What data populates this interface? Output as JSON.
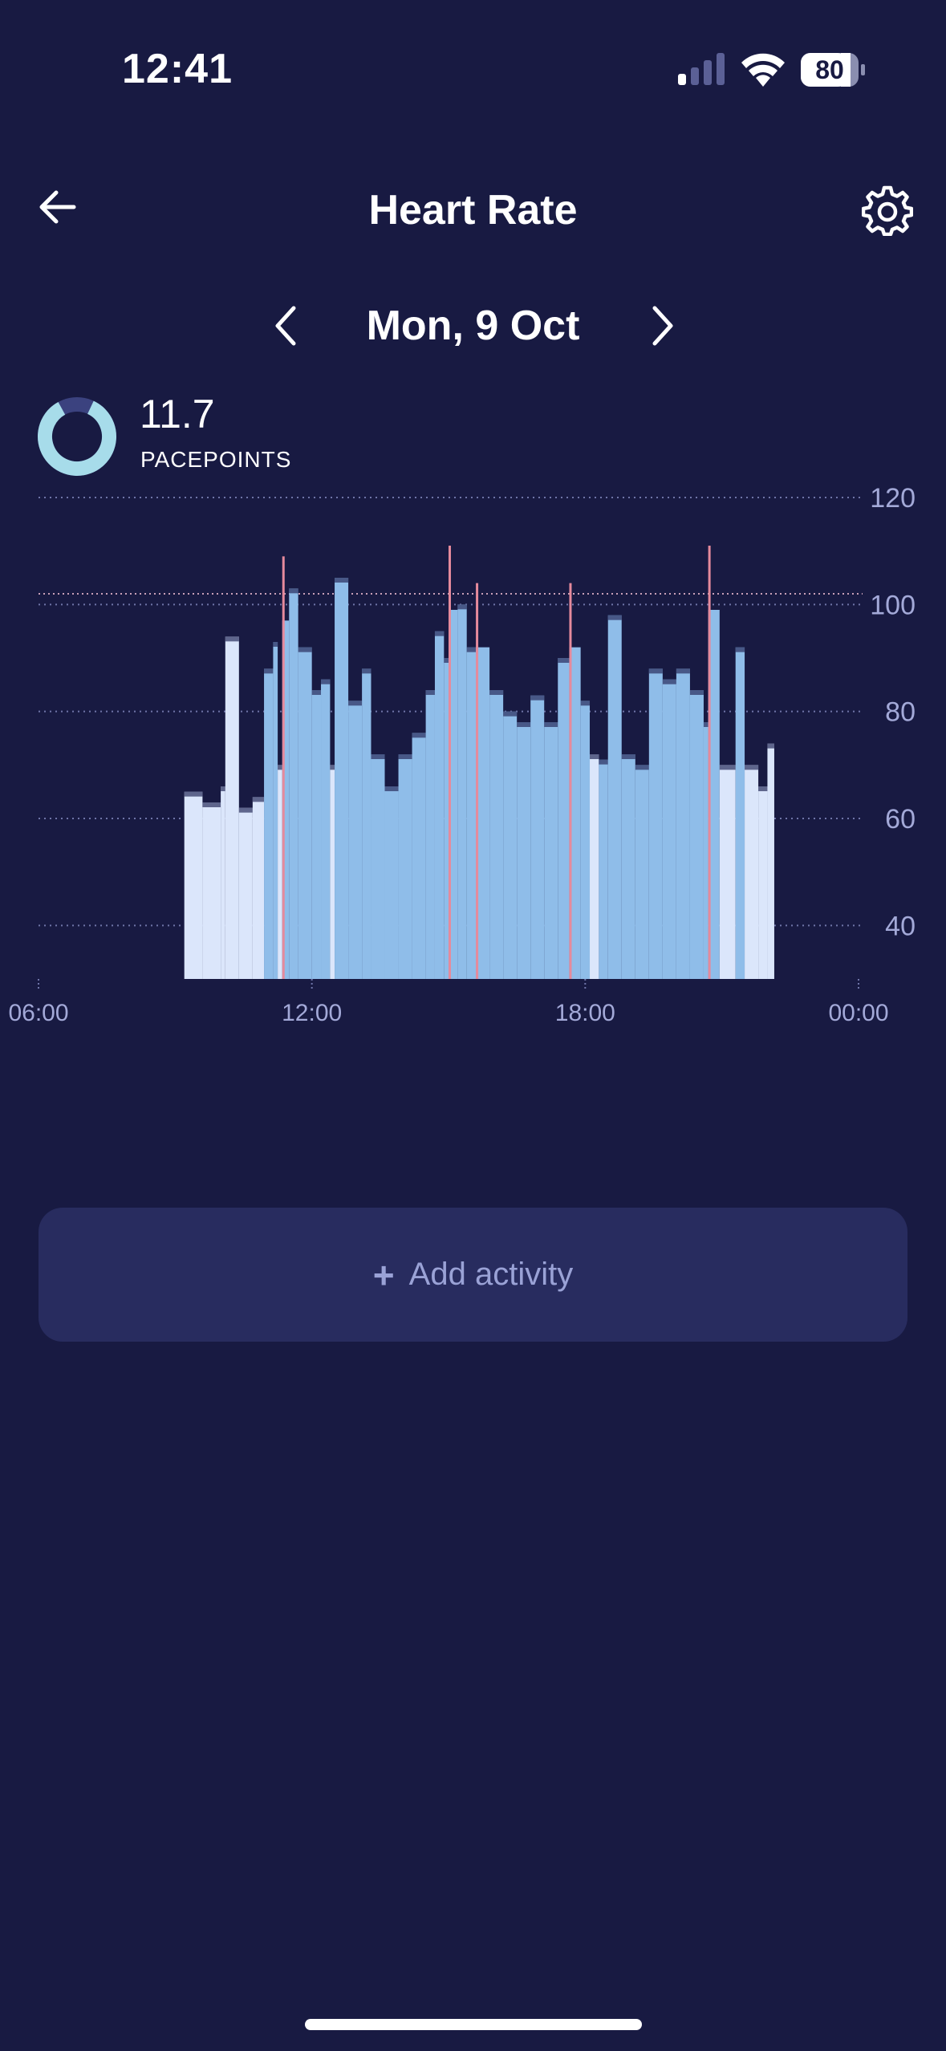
{
  "status_bar": {
    "time": "12:41",
    "battery": "80"
  },
  "header": {
    "title": "Heart Rate",
    "back_icon": "arrow-left-icon",
    "settings_icon": "gear-icon"
  },
  "date_nav": {
    "label": "Mon, 9 Oct",
    "prev_icon": "chevron-left-icon",
    "next_icon": "chevron-right-icon"
  },
  "pacepoints": {
    "value": "11.7",
    "label": "PACEPOINTS",
    "donut_fill_fraction": 0.85
  },
  "chart_data": {
    "type": "bar",
    "title": "",
    "xlabel": "",
    "ylabel": "",
    "x_ticks": [
      "06:00",
      "12:00",
      "18:00",
      "00:00"
    ],
    "y_ticks": [
      40,
      60,
      80,
      100,
      120
    ],
    "ylim": [
      30,
      120
    ],
    "xlim_hours": [
      6,
      24
    ],
    "threshold": 102,
    "grid": true,
    "colors": {
      "light": "#dbe6fb",
      "medium": "#8fbde9",
      "spike": "#e58a9c",
      "grid": "#6f75a8"
    },
    "series": [
      {
        "values": [
          {
            "t": 9.2,
            "v": 65,
            "c": "light"
          },
          {
            "t": 9.6,
            "v": 63,
            "c": "light"
          },
          {
            "t": 10.0,
            "v": 66,
            "c": "light"
          },
          {
            "t": 10.1,
            "v": 94,
            "c": "light"
          },
          {
            "t": 10.4,
            "v": 62,
            "c": "light"
          },
          {
            "t": 10.7,
            "v": 64,
            "c": "light"
          },
          {
            "t": 10.95,
            "v": 88,
            "c": "medium"
          },
          {
            "t": 11.15,
            "v": 93,
            "c": "medium"
          },
          {
            "t": 11.25,
            "v": 70,
            "c": "light"
          },
          {
            "t": 11.35,
            "v": 109,
            "c": "spike"
          },
          {
            "t": 11.5,
            "v": 103,
            "c": "medium"
          },
          {
            "t": 11.7,
            "v": 92,
            "c": "medium"
          },
          {
            "t": 12.0,
            "v": 84,
            "c": "medium"
          },
          {
            "t": 12.2,
            "v": 86,
            "c": "medium"
          },
          {
            "t": 12.4,
            "v": 70,
            "c": "light"
          },
          {
            "t": 12.5,
            "v": 105,
            "c": "medium"
          },
          {
            "t": 12.8,
            "v": 82,
            "c": "medium"
          },
          {
            "t": 13.1,
            "v": 88,
            "c": "medium"
          },
          {
            "t": 13.3,
            "v": 72,
            "c": "medium"
          },
          {
            "t": 13.6,
            "v": 66,
            "c": "medium"
          },
          {
            "t": 13.9,
            "v": 72,
            "c": "medium"
          },
          {
            "t": 14.2,
            "v": 76,
            "c": "medium"
          },
          {
            "t": 14.5,
            "v": 84,
            "c": "medium"
          },
          {
            "t": 14.7,
            "v": 95,
            "c": "medium"
          },
          {
            "t": 14.9,
            "v": 90,
            "c": "medium"
          },
          {
            "t": 15.0,
            "v": 111,
            "c": "spike"
          },
          {
            "t": 15.2,
            "v": 100,
            "c": "medium"
          },
          {
            "t": 15.4,
            "v": 92,
            "c": "medium"
          },
          {
            "t": 15.6,
            "v": 104,
            "c": "spike"
          },
          {
            "t": 15.9,
            "v": 84,
            "c": "medium"
          },
          {
            "t": 16.2,
            "v": 80,
            "c": "medium"
          },
          {
            "t": 16.5,
            "v": 78,
            "c": "medium"
          },
          {
            "t": 16.8,
            "v": 83,
            "c": "medium"
          },
          {
            "t": 17.1,
            "v": 78,
            "c": "medium"
          },
          {
            "t": 17.4,
            "v": 90,
            "c": "medium"
          },
          {
            "t": 17.65,
            "v": 104,
            "c": "spike"
          },
          {
            "t": 17.9,
            "v": 82,
            "c": "medium"
          },
          {
            "t": 18.1,
            "v": 72,
            "c": "light"
          },
          {
            "t": 18.3,
            "v": 71,
            "c": "medium"
          },
          {
            "t": 18.5,
            "v": 98,
            "c": "medium"
          },
          {
            "t": 18.8,
            "v": 72,
            "c": "medium"
          },
          {
            "t": 19.1,
            "v": 70,
            "c": "medium"
          },
          {
            "t": 19.4,
            "v": 88,
            "c": "medium"
          },
          {
            "t": 19.7,
            "v": 86,
            "c": "medium"
          },
          {
            "t": 20.0,
            "v": 88,
            "c": "medium"
          },
          {
            "t": 20.3,
            "v": 84,
            "c": "medium"
          },
          {
            "t": 20.6,
            "v": 78,
            "c": "medium"
          },
          {
            "t": 20.7,
            "v": 111,
            "c": "spike"
          },
          {
            "t": 20.95,
            "v": 70,
            "c": "light"
          },
          {
            "t": 21.3,
            "v": 92,
            "c": "medium"
          },
          {
            "t": 21.5,
            "v": 70,
            "c": "light"
          },
          {
            "t": 21.8,
            "v": 66,
            "c": "light"
          },
          {
            "t": 22.0,
            "v": 74,
            "c": "light"
          }
        ]
      }
    ]
  },
  "add_activity": {
    "label": "Add activity",
    "icon": "plus-icon"
  }
}
